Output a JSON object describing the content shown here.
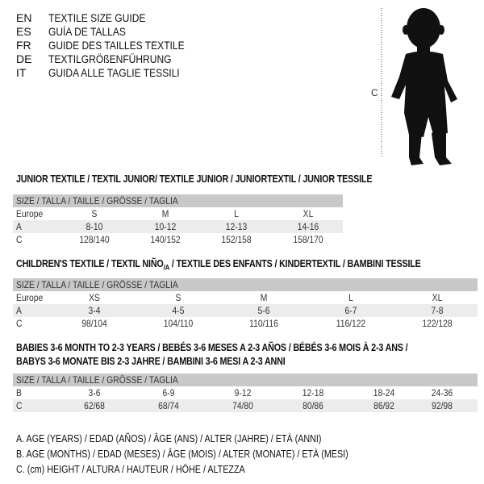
{
  "languages": [
    {
      "code": "EN",
      "title": "TEXTILE SIZE GUIDE"
    },
    {
      "code": "ES",
      "title": "GUÍA DE TALLAS"
    },
    {
      "code": "FR",
      "title": "GUIDE DES TAILLES TEXTILE"
    },
    {
      "code": "DE",
      "title": "TEXTILGRÖßENFÜHRUNG"
    },
    {
      "code": "IT",
      "title": "GUIDA ALLE TAGLIE TESSILI"
    }
  ],
  "figure": {
    "label": "C"
  },
  "junior": {
    "heading": "JUNIOR TEXTILE / TEXTIL JUNIOR/ TEXTILE JUNIOR / JUNIORTEXTIL / JUNIOR TESSILE",
    "header": "SIZE / TALLA / TAILLE / GRÖSSE / TAGLIA",
    "rows": [
      {
        "label": "Europe",
        "values": [
          "S",
          "M",
          "L",
          "XL"
        ]
      },
      {
        "label": "A",
        "values": [
          "8-10",
          "10-12",
          "12-13",
          "14-16"
        ]
      },
      {
        "label": "C",
        "values": [
          "128/140",
          "140/152",
          "152/158",
          "158/170"
        ]
      }
    ]
  },
  "children": {
    "heading": "CHILDREN'S TEXTILE / TEXTIL NIÑO",
    "heading_sub": "/A",
    "heading_rest": " / TEXTILE DES ENFANTS / KINDERTEXTIL / BAMBINI TESSILE",
    "header": "SIZE / TALLA / TAILLE / GRÖSSE / TAGLIA",
    "rows": [
      {
        "label": "Europe",
        "values": [
          "XS",
          "S",
          "M",
          "L",
          "XL"
        ]
      },
      {
        "label": "A",
        "values": [
          "3-4",
          "4-5",
          "5-6",
          "6-7",
          "7-8"
        ]
      },
      {
        "label": "C",
        "values": [
          "98/104",
          "104/110",
          "110/116",
          "116/122",
          "122/128"
        ]
      }
    ]
  },
  "babies": {
    "heading_line1": "BABIES 3-6 MONTH TO 2-3 YEARS / BEBÉS 3-6 MESES A 2-3 AÑOS / BÉBÉS 3-6 MOIS À 2-3 ANS /",
    "heading_line2": "BABYS 3-6 MONATE BIS 2-3 JAHRE / BAMBINI 3-6 MESI A 2-3 ANNI",
    "header": "SIZE / TALLA / TAILLE / GRÖSSE / TAGLIA",
    "rows": [
      {
        "label": "B",
        "values": [
          "3-6",
          "6-9",
          "9-12",
          "12-18",
          "18-24",
          "24-36"
        ]
      },
      {
        "label": "C",
        "values": [
          "62/68",
          "68/74",
          "74/80",
          "80/86",
          "86/92",
          "92/98"
        ]
      }
    ]
  },
  "legend": [
    "A. AGE (YEARS) / EDAD (AÑOS) / ÂGE (ANS) / ALTER (JAHRE) / ETÀ (ANNI)",
    "B. AGE (MONTHS) / EDAD (MESES) / ÂGE (MOIS) / ALTER (MONATE) / ETÀ (MESI)",
    "C. (cm) HEIGHT / ALTURA / HAUTEUR / HÖHE / ALTEZZA"
  ]
}
